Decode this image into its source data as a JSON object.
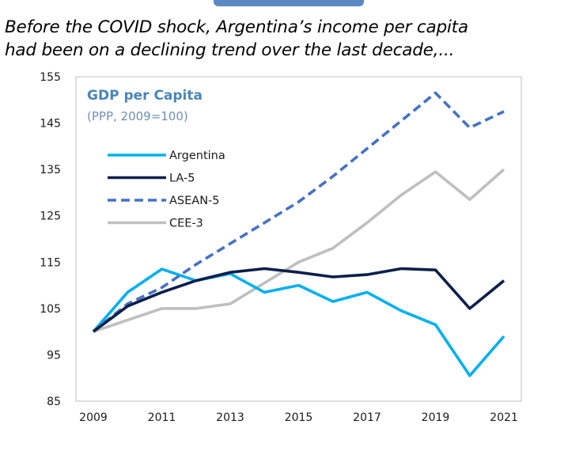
{
  "header": {
    "line1": "Before the COVID shock, Argentina’s income per capita",
    "line2": "had been on a declining trend over the last decade,..."
  },
  "chart_data": {
    "type": "line",
    "title": "GDP per Capita",
    "subtitle": "(PPP, 2009=100)",
    "x": [
      2009,
      2010,
      2011,
      2012,
      2013,
      2014,
      2015,
      2016,
      2017,
      2018,
      2019,
      2020,
      2021
    ],
    "xticks": [
      "2009",
      "2011",
      "2013",
      "2015",
      "2017",
      "2019",
      "2021"
    ],
    "yticks": [
      "155",
      "145",
      "135",
      "125",
      "115",
      "105",
      "95",
      "85"
    ],
    "ylim": [
      85,
      155
    ],
    "grid": false,
    "legend_position": "upper-left",
    "series": [
      {
        "name": "Argentina",
        "color": "#00b0f0",
        "dash": "solid",
        "values": [
          100,
          108.5,
          113.5,
          111,
          112.5,
          108.5,
          110,
          106.5,
          108.5,
          104.5,
          101.5,
          90.5,
          99
        ]
      },
      {
        "name": "LA-5",
        "color": "#0b1f4b",
        "dash": "solid",
        "values": [
          100,
          105.5,
          108.5,
          111,
          112.8,
          113.6,
          112.8,
          111.8,
          112.3,
          113.6,
          113.3,
          105,
          111
        ]
      },
      {
        "name": "ASEAN-5",
        "color": "#4472c4",
        "dash": "dashed",
        "values": [
          100,
          106,
          109.5,
          114.5,
          119,
          123.5,
          128,
          133.5,
          139.5,
          145.5,
          151.5,
          144,
          147.5
        ]
      },
      {
        "name": "CEE-3",
        "color": "#bfbfbf",
        "dash": "solid",
        "values": [
          100,
          102.5,
          105,
          105,
          106,
          110.5,
          115,
          118,
          123.5,
          129.5,
          134.5,
          128.5,
          135
        ]
      }
    ]
  }
}
